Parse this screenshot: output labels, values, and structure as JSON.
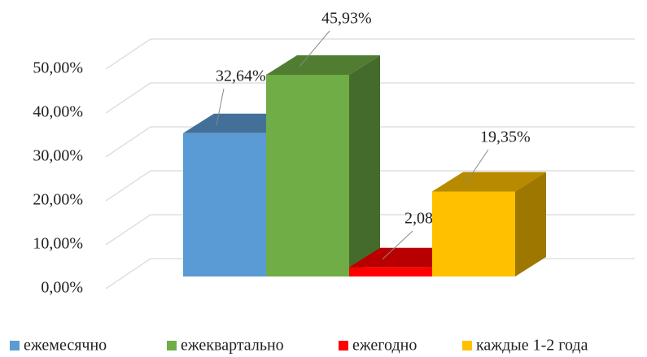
{
  "chart_data": {
    "type": "bar3d",
    "series": [
      {
        "name": "ежемесячно",
        "color": "#5b9bd5",
        "values": [
          32.64
        ],
        "value_labels": [
          "32,64%"
        ]
      },
      {
        "name": "ежеквартально",
        "color": "#70ad47",
        "values": [
          45.93
        ],
        "value_labels": [
          "45,93%"
        ]
      },
      {
        "name": "ежегодно",
        "color": "#ff0000",
        "values": [
          2.08
        ],
        "value_labels": [
          "2,08%"
        ]
      },
      {
        "name": "каждые 1-2 года",
        "color": "#ffc000",
        "values": [
          19.35
        ],
        "value_labels": [
          "19,35%"
        ]
      }
    ],
    "ylim": [
      0,
      50
    ],
    "yticks": [
      {
        "value": 0,
        "label": "0,00%"
      },
      {
        "value": 10,
        "label": "10,00%"
      },
      {
        "value": 20,
        "label": "20,00%"
      },
      {
        "value": 30,
        "label": "30,00%"
      },
      {
        "value": 40,
        "label": "40,00%"
      },
      {
        "value": 50,
        "label": "50,00%"
      }
    ],
    "grid": true,
    "legend": "bottom"
  }
}
